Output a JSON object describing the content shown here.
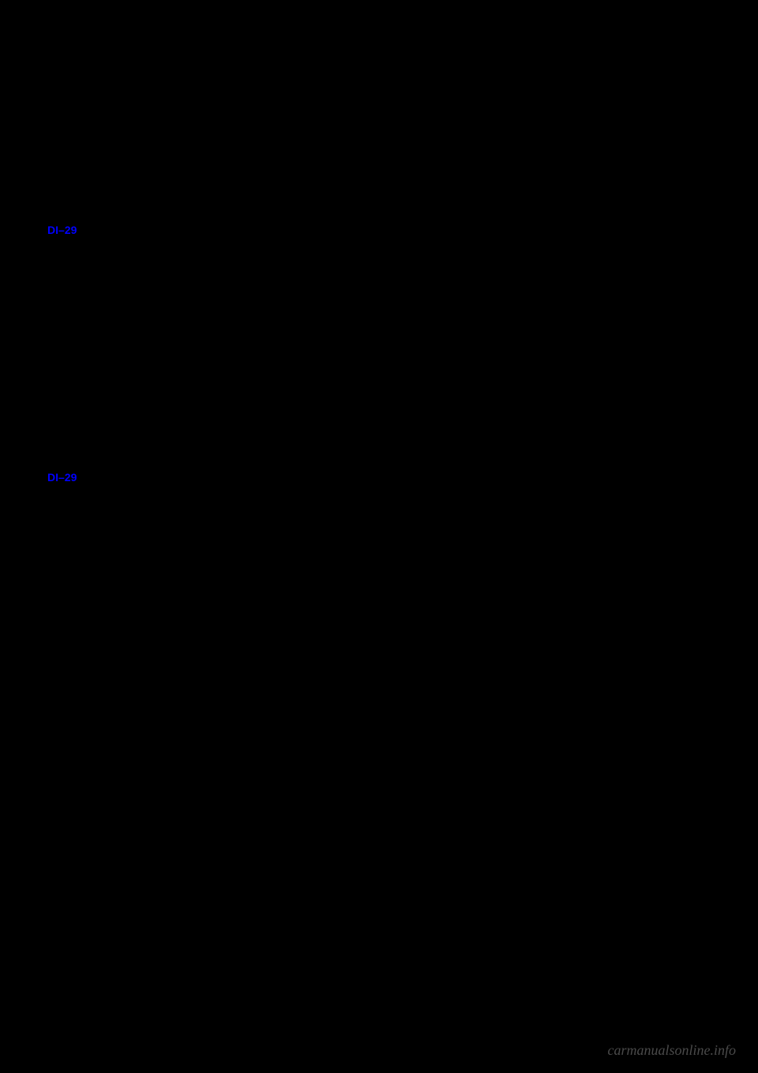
{
  "links": {
    "link1": "DI–29",
    "link2": "DI–29"
  },
  "watermark": "carmanualsonline.info",
  "colors": {
    "background": "#000000",
    "link_color": "#0000ff",
    "watermark_color": "#4a4a4a"
  }
}
